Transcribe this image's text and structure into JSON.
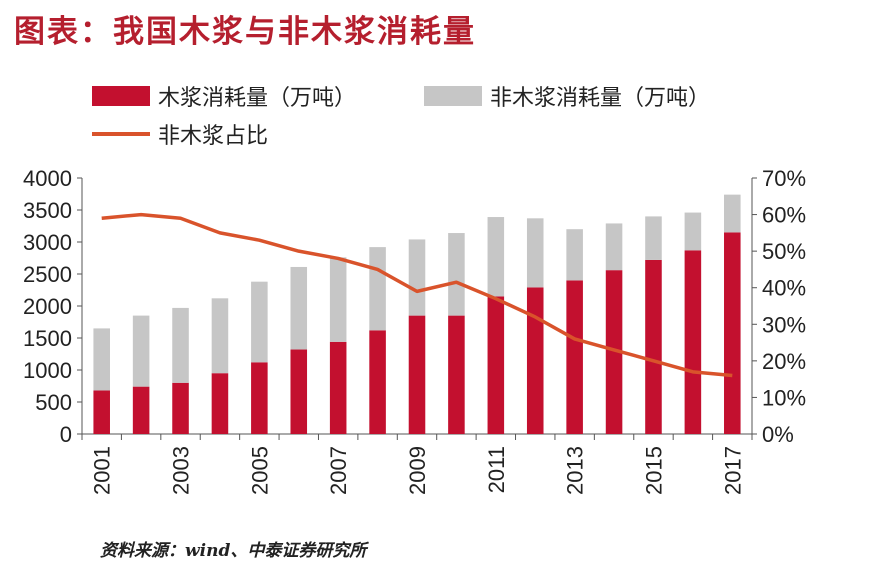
{
  "title": "图表：我国木浆与非木浆消耗量",
  "source": "资料来源：wind、中泰证券研究所",
  "colors": {
    "bar_wood": "#c3102f",
    "bar_nonwood": "#c6c6c6",
    "line": "#d9532b",
    "title": "#b51f2e"
  },
  "chart_data": {
    "type": "bar",
    "stacked": true,
    "x": [
      2001,
      2002,
      2003,
      2004,
      2005,
      2006,
      2007,
      2008,
      2009,
      2010,
      2011,
      2012,
      2013,
      2014,
      2015,
      2016,
      2017
    ],
    "x_tick_labels": [
      "2001",
      "2003",
      "2005",
      "2007",
      "2009",
      "2011",
      "2013",
      "2015",
      "2017"
    ],
    "series": [
      {
        "name": "木浆消耗量（万吨）",
        "type": "bar",
        "axis": "left",
        "values": [
          680,
          740,
          800,
          950,
          1120,
          1320,
          1440,
          1620,
          1850,
          1850,
          2150,
          2290,
          2400,
          2560,
          2720,
          2870,
          3150
        ]
      },
      {
        "name": "非木浆消耗量（万吨）",
        "type": "bar",
        "axis": "left",
        "values": [
          970,
          1110,
          1170,
          1170,
          1260,
          1290,
          1320,
          1300,
          1190,
          1290,
          1240,
          1080,
          800,
          730,
          680,
          590,
          590
        ]
      },
      {
        "name": "非木浆占比",
        "type": "line",
        "axis": "right",
        "values": [
          0.59,
          0.6,
          0.59,
          0.55,
          0.53,
          0.5,
          0.48,
          0.45,
          0.39,
          0.415,
          0.37,
          0.32,
          0.26,
          0.23,
          0.2,
          0.17,
          0.16
        ]
      }
    ],
    "y_left": {
      "ylim": [
        0,
        4000
      ],
      "ticks": [
        "0",
        "500",
        "1000",
        "1500",
        "2000",
        "2500",
        "3000",
        "3500",
        "4000"
      ]
    },
    "y_right": {
      "ylim": [
        0,
        0.7
      ],
      "ticks": [
        "0%",
        "10%",
        "20%",
        "30%",
        "40%",
        "50%",
        "60%",
        "70%"
      ]
    },
    "legend_position": "top",
    "grid": false
  }
}
